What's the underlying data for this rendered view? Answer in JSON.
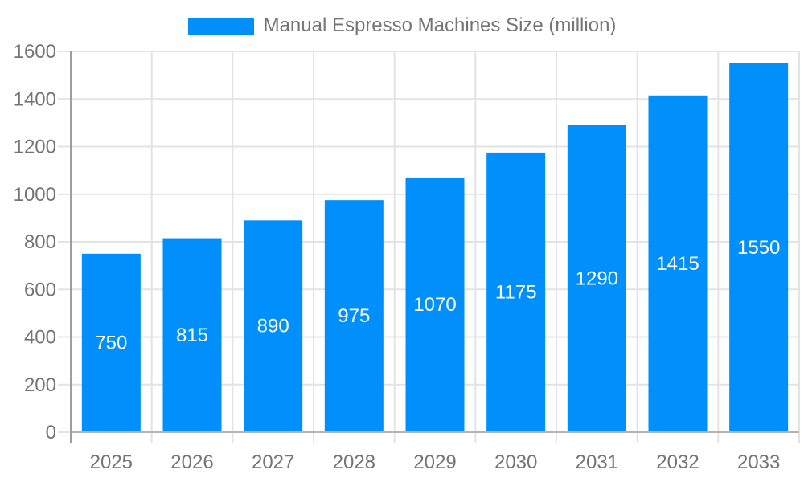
{
  "legend": {
    "label": "Manual Espresso Machines Size (million)"
  },
  "chart_data": {
    "type": "bar",
    "title": "Manual Espresso Machines Size (million)",
    "series_name": "Manual Espresso Machines Size (million)",
    "categories": [
      "2025",
      "2026",
      "2027",
      "2028",
      "2029",
      "2030",
      "2031",
      "2032",
      "2033"
    ],
    "values": [
      750,
      815,
      890,
      975,
      1070,
      1175,
      1290,
      1415,
      1550
    ],
    "value_labels": [
      "750",
      "815",
      "890",
      "975",
      "1070",
      "1175",
      "1290",
      "1415",
      "1550"
    ],
    "xlabel": "",
    "ylabel": "",
    "ylim": [
      0,
      1600
    ],
    "yticks": [
      0,
      200,
      400,
      600,
      800,
      1000,
      1200,
      1400,
      1600
    ],
    "grid": true,
    "legend_position": "top-center",
    "value_label_position": "inside-middle",
    "colors": {
      "bar": "#008FFB",
      "grid": "#e3e3e3",
      "y_axis": "#9e9e9e",
      "baseline": "#b3b3b3",
      "tick_text": "#757575",
      "legend_text": "#757575",
      "value_label": "#ffffff",
      "background": "#ffffff"
    }
  }
}
